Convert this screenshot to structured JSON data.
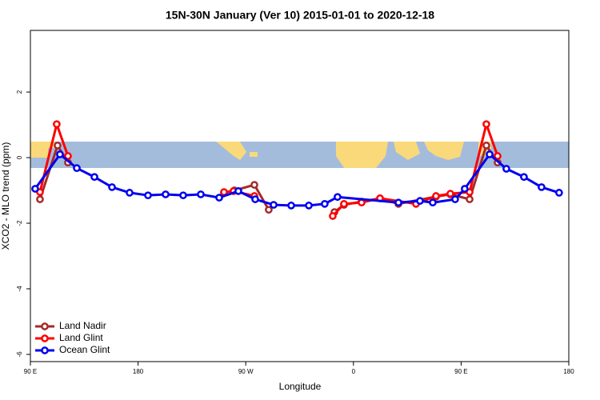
{
  "chart_data": {
    "type": "line",
    "title": "15N-30N January (Ver 10)   2015-01-01 to 2020-12-18",
    "xlabel": "Longitude",
    "ylabel": "XCO2 - MLO trend (ppm)",
    "xlim": [
      90,
      540
    ],
    "xticks": [
      {
        "value": 90,
        "label": "90 E"
      },
      180,
      {
        "value": 270,
        "label": "90 W"
      },
      {
        "value": 360,
        "label": "0"
      },
      {
        "value": 450,
        "label": "90 E"
      },
      {
        "value": 540,
        "label": "180"
      }
    ],
    "ylim": [
      -6.22,
      3.88
    ],
    "yticks": [
      -6,
      -4,
      -2,
      0,
      2
    ],
    "legend": "bottom-left",
    "series": [
      {
        "name": "Land Nadir",
        "color": "#a52a2a",
        "x": [
          98.0,
          112.7,
          121.4,
          null,
          251.8,
          260.5,
          277.2,
          289.2,
          null,
          344.1,
          352.1,
          366.8,
          382.2,
          397.6,
          429.0,
          441.0,
          457.1,
          471.1,
          480.5
        ],
        "values": [
          -1.27,
          0.37,
          -0.15,
          null,
          -1.07,
          -1.0,
          -0.83,
          -1.59,
          null,
          -1.66,
          -1.44,
          -1.34,
          -1.24,
          -1.41,
          -1.19,
          -1.12,
          -1.27,
          0.37,
          -0.15
        ]
      },
      {
        "name": "Land Glint",
        "color": "#ff0000",
        "x": [
          98.0,
          112.0,
          121.4,
          null,
          251.8,
          259.8,
          277.2,
          null,
          342.7,
          352.1,
          366.8,
          382.2,
          412.3,
          429.0,
          441.0,
          457.1,
          471.1,
          480.5
        ],
        "values": [
          -1.05,
          1.02,
          0.05,
          null,
          -1.05,
          -1.02,
          -1.17,
          null,
          -1.78,
          -1.41,
          -1.37,
          -1.24,
          -1.41,
          -1.17,
          -1.1,
          -1.05,
          1.02,
          0.05
        ]
      },
      {
        "name": "Ocean Glint",
        "color": "#0000ee",
        "x": [
          94.0,
          114.7,
          128.8,
          143.5,
          158.2,
          172.9,
          188.3,
          203.0,
          217.7,
          232.4,
          247.8,
          263.8,
          277.9,
          293.3,
          308.0,
          322.7,
          336.0,
          346.7,
          397.6,
          415.6,
          426.3,
          445.0,
          453.0,
          473.8,
          487.8,
          502.5,
          517.2,
          531.9
        ],
        "values": [
          -0.95,
          0.1,
          -0.32,
          -0.59,
          -0.9,
          -1.07,
          -1.15,
          -1.12,
          -1.15,
          -1.12,
          -1.22,
          -1.02,
          -1.27,
          -1.44,
          -1.46,
          -1.46,
          -1.41,
          -1.2,
          -1.37,
          -1.32,
          -1.37,
          -1.27,
          -0.95,
          0.1,
          -0.34,
          -0.59,
          -0.9,
          -1.07
        ]
      }
    ]
  }
}
